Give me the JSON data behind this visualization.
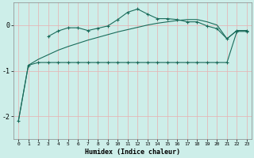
{
  "xlabel": "Humidex (Indice chaleur)",
  "x": [
    0,
    1,
    2,
    3,
    4,
    5,
    6,
    7,
    8,
    9,
    10,
    11,
    12,
    13,
    14,
    15,
    16,
    17,
    18,
    19,
    20,
    21,
    22,
    23
  ],
  "curve_bumpy": [
    null,
    null,
    null,
    -0.25,
    -0.13,
    -0.06,
    -0.06,
    -0.12,
    -0.07,
    -0.02,
    0.12,
    0.28,
    0.35,
    0.24,
    0.14,
    0.14,
    0.12,
    0.07,
    0.07,
    -0.02,
    -0.08,
    -0.3,
    -0.12,
    -0.12
  ],
  "curve_flat": [
    -2.1,
    -0.88,
    -0.82,
    -0.82,
    -0.82,
    -0.82,
    -0.82,
    -0.82,
    -0.82,
    -0.82,
    -0.82,
    -0.82,
    -0.82,
    -0.82,
    -0.82,
    -0.82,
    -0.82,
    -0.82,
    -0.82,
    -0.82,
    -0.82,
    -0.82,
    -0.14,
    -0.14
  ],
  "curve_linear": [
    -2.1,
    -0.88,
    -0.75,
    -0.65,
    -0.55,
    -0.47,
    -0.4,
    -0.33,
    -0.27,
    -0.21,
    -0.15,
    -0.1,
    -0.05,
    0.0,
    0.04,
    0.07,
    0.1,
    0.12,
    0.12,
    0.07,
    0.0,
    -0.3,
    -0.12,
    -0.12
  ],
  "bg_color": "#cdeee9",
  "grid_color": "#e8b0b0",
  "line_color": "#1a6b5a",
  "ylim": [
    -2.5,
    0.5
  ],
  "xlim": [
    -0.5,
    23.5
  ],
  "yticks": [
    -2,
    -1,
    0
  ],
  "xticks": [
    0,
    1,
    2,
    3,
    4,
    5,
    6,
    7,
    8,
    9,
    10,
    11,
    12,
    13,
    14,
    15,
    16,
    17,
    18,
    19,
    20,
    21,
    22,
    23
  ]
}
